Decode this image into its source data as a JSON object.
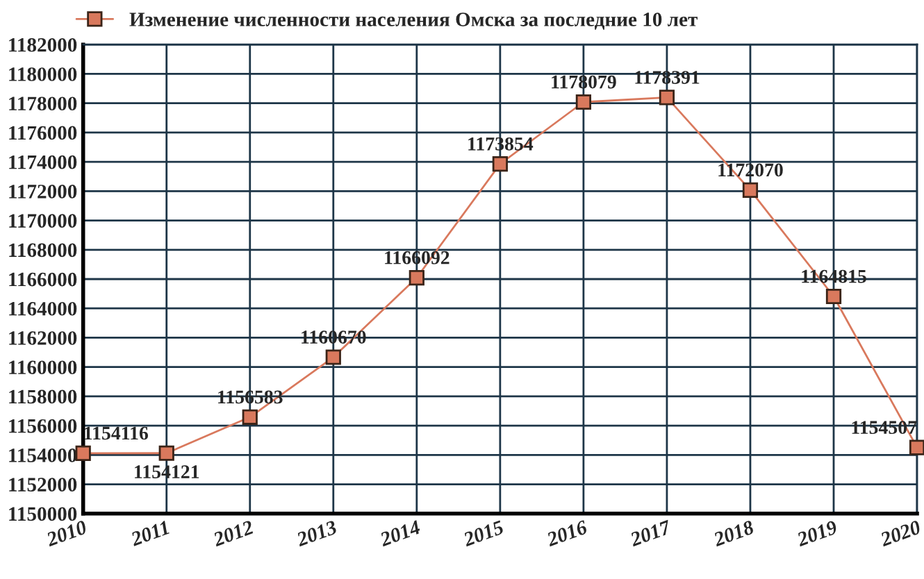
{
  "chart_data": {
    "type": "line",
    "x": [
      2010,
      2011,
      2012,
      2013,
      2014,
      2015,
      2016,
      2017,
      2018,
      2019,
      2020
    ],
    "series": [
      {
        "name": "Изменение численности населения Омска за последние 10 лет",
        "color": "#d9795d",
        "values": [
          1154116,
          1154121,
          1156583,
          1160670,
          1166092,
          1173854,
          1178079,
          1178391,
          1172070,
          1164815,
          1154507
        ]
      }
    ],
    "xlim": [
      2010,
      2020
    ],
    "xticks": [
      2010,
      2011,
      2012,
      2013,
      2014,
      2015,
      2016,
      2017,
      2018,
      2019,
      2020
    ],
    "ylim": [
      1150000,
      1182000
    ],
    "yticks": [
      1150000,
      1152000,
      1154000,
      1156000,
      1158000,
      1160000,
      1162000,
      1164000,
      1166000,
      1168000,
      1170000,
      1172000,
      1174000,
      1176000,
      1178000,
      1180000,
      1182000
    ],
    "grid": true,
    "legend": "top left",
    "marker": "square",
    "line_style": "solid",
    "data_labels": true
  }
}
